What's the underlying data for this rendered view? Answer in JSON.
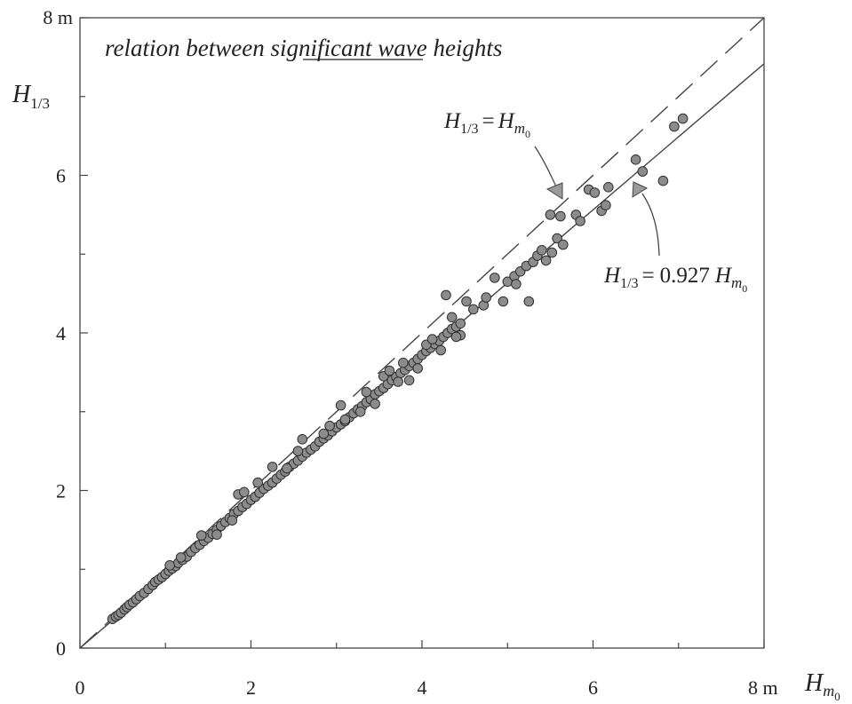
{
  "chart_data": {
    "type": "scatter",
    "title_prefix": "relation between",
    "title_underlined": "significant",
    "title_suffix": "wave heights",
    "xlabel": {
      "main": "H",
      "sub": "m",
      "subsub": "0"
    },
    "ylabel": {
      "main": "H",
      "sub": "1/3"
    },
    "xlim": [
      0,
      8
    ],
    "ylim": [
      0,
      8
    ],
    "x_unit": "m",
    "y_unit": "m",
    "x_ticks": [
      {
        "value": 0,
        "label": "0"
      },
      {
        "value": 2,
        "label": "2"
      },
      {
        "value": 4,
        "label": "4"
      },
      {
        "value": 6,
        "label": "6"
      },
      {
        "value": 8,
        "label": "8 m"
      }
    ],
    "y_ticks": [
      {
        "value": 0,
        "label": "0"
      },
      {
        "value": 2,
        "label": "2"
      },
      {
        "value": 4,
        "label": "4"
      },
      {
        "value": 6,
        "label": "6"
      },
      {
        "value": 8,
        "label": "8 m"
      }
    ],
    "lines": [
      {
        "style": "dashed",
        "slope": 1.0,
        "label_lhs": "H",
        "label_lhs_sub": "1/3",
        "label_eq": "=",
        "label_coef": "",
        "label_rhs": "H",
        "label_rhs_sub": "m",
        "label_rhs_subsub": "0"
      },
      {
        "style": "solid",
        "slope": 0.927,
        "label_lhs": "H",
        "label_lhs_sub": "1/3",
        "label_eq": "=",
        "label_coef": "0.927",
        "label_rhs": "H",
        "label_rhs_sub": "m",
        "label_rhs_subsub": "0"
      }
    ],
    "points": [
      [
        0.38,
        0.37
      ],
      [
        0.42,
        0.4
      ],
      [
        0.45,
        0.42
      ],
      [
        0.48,
        0.45
      ],
      [
        0.52,
        0.49
      ],
      [
        0.55,
        0.52
      ],
      [
        0.58,
        0.55
      ],
      [
        0.62,
        0.58
      ],
      [
        0.66,
        0.62
      ],
      [
        0.7,
        0.66
      ],
      [
        0.75,
        0.7
      ],
      [
        0.8,
        0.75
      ],
      [
        0.85,
        0.8
      ],
      [
        0.88,
        0.84
      ],
      [
        0.92,
        0.87
      ],
      [
        0.96,
        0.9
      ],
      [
        1.0,
        0.94
      ],
      [
        1.04,
        0.98
      ],
      [
        1.08,
        1.01
      ],
      [
        1.12,
        1.04
      ],
      [
        1.15,
        1.08
      ],
      [
        1.2,
        1.12
      ],
      [
        1.25,
        1.16
      ],
      [
        1.3,
        1.22
      ],
      [
        1.35,
        1.27
      ],
      [
        1.4,
        1.31
      ],
      [
        1.45,
        1.36
      ],
      [
        1.5,
        1.4
      ],
      [
        1.55,
        1.45
      ],
      [
        1.6,
        1.5
      ],
      [
        1.65,
        1.55
      ],
      [
        1.7,
        1.6
      ],
      [
        1.75,
        1.65
      ],
      [
        1.8,
        1.7
      ],
      [
        1.85,
        1.74
      ],
      [
        1.9,
        1.79
      ],
      [
        1.95,
        1.83
      ],
      [
        2.0,
        1.88
      ],
      [
        2.05,
        1.92
      ],
      [
        2.1,
        1.97
      ],
      [
        2.15,
        2.02
      ],
      [
        2.2,
        2.06
      ],
      [
        2.25,
        2.1
      ],
      [
        2.3,
        2.15
      ],
      [
        2.35,
        2.2
      ],
      [
        2.4,
        2.24
      ],
      [
        2.45,
        2.3
      ],
      [
        2.5,
        2.34
      ],
      [
        2.55,
        2.38
      ],
      [
        2.6,
        2.43
      ],
      [
        2.65,
        2.48
      ],
      [
        2.7,
        2.52
      ],
      [
        2.75,
        2.56
      ],
      [
        2.8,
        2.62
      ],
      [
        2.85,
        2.66
      ],
      [
        2.9,
        2.7
      ],
      [
        2.95,
        2.75
      ],
      [
        3.0,
        2.8
      ],
      [
        3.05,
        2.84
      ],
      [
        3.1,
        2.88
      ],
      [
        3.15,
        2.93
      ],
      [
        3.2,
        2.98
      ],
      [
        3.25,
        3.03
      ],
      [
        3.3,
        3.07
      ],
      [
        3.35,
        3.12
      ],
      [
        3.4,
        3.16
      ],
      [
        3.45,
        3.22
      ],
      [
        3.5,
        3.26
      ],
      [
        3.55,
        3.3
      ],
      [
        3.6,
        3.35
      ],
      [
        3.65,
        3.4
      ],
      [
        3.7,
        3.44
      ],
      [
        3.75,
        3.49
      ],
      [
        3.8,
        3.53
      ],
      [
        3.85,
        3.58
      ],
      [
        3.9,
        3.62
      ],
      [
        3.95,
        3.67
      ],
      [
        4.0,
        3.72
      ],
      [
        4.05,
        3.77
      ],
      [
        4.1,
        3.81
      ],
      [
        4.15,
        3.86
      ],
      [
        4.2,
        3.9
      ],
      [
        4.25,
        3.95
      ],
      [
        4.3,
        4.0
      ],
      [
        4.35,
        4.05
      ],
      [
        4.4,
        4.08
      ],
      [
        4.45,
        3.97
      ],
      [
        4.45,
        4.12
      ],
      [
        1.05,
        1.05
      ],
      [
        1.18,
        1.15
      ],
      [
        1.42,
        1.43
      ],
      [
        1.6,
        1.44
      ],
      [
        1.78,
        1.62
      ],
      [
        1.85,
        1.95
      ],
      [
        1.92,
        1.98
      ],
      [
        2.08,
        2.1
      ],
      [
        2.25,
        2.3
      ],
      [
        2.42,
        2.28
      ],
      [
        2.55,
        2.5
      ],
      [
        2.6,
        2.65
      ],
      [
        2.85,
        2.72
      ],
      [
        2.92,
        2.82
      ],
      [
        3.05,
        3.08
      ],
      [
        3.1,
        2.9
      ],
      [
        3.28,
        3.0
      ],
      [
        3.35,
        3.25
      ],
      [
        3.45,
        3.1
      ],
      [
        3.55,
        3.45
      ],
      [
        3.62,
        3.52
      ],
      [
        3.72,
        3.38
      ],
      [
        3.78,
        3.62
      ],
      [
        3.85,
        3.4
      ],
      [
        3.95,
        3.55
      ],
      [
        4.05,
        3.85
      ],
      [
        4.12,
        3.92
      ],
      [
        4.22,
        3.78
      ],
      [
        4.28,
        4.48
      ],
      [
        4.35,
        4.2
      ],
      [
        4.4,
        3.95
      ],
      [
        4.52,
        4.4
      ],
      [
        4.6,
        4.3
      ],
      [
        4.72,
        4.35
      ],
      [
        4.75,
        4.45
      ],
      [
        4.85,
        4.7
      ],
      [
        4.95,
        4.4
      ],
      [
        5.0,
        4.65
      ],
      [
        5.08,
        4.72
      ],
      [
        5.1,
        4.62
      ],
      [
        5.15,
        4.78
      ],
      [
        5.22,
        4.85
      ],
      [
        5.25,
        4.4
      ],
      [
        5.3,
        4.9
      ],
      [
        5.35,
        4.98
      ],
      [
        5.4,
        5.05
      ],
      [
        5.45,
        4.92
      ],
      [
        5.5,
        5.5
      ],
      [
        5.52,
        5.02
      ],
      [
        5.58,
        5.2
      ],
      [
        5.62,
        5.48
      ],
      [
        5.65,
        5.12
      ],
      [
        5.8,
        5.5
      ],
      [
        5.85,
        5.42
      ],
      [
        5.95,
        5.82
      ],
      [
        6.02,
        5.78
      ],
      [
        6.1,
        5.55
      ],
      [
        6.15,
        5.62
      ],
      [
        6.18,
        5.85
      ],
      [
        6.5,
        6.2
      ],
      [
        6.58,
        6.05
      ],
      [
        6.82,
        5.93
      ],
      [
        6.95,
        6.62
      ],
      [
        7.05,
        6.72
      ]
    ]
  }
}
